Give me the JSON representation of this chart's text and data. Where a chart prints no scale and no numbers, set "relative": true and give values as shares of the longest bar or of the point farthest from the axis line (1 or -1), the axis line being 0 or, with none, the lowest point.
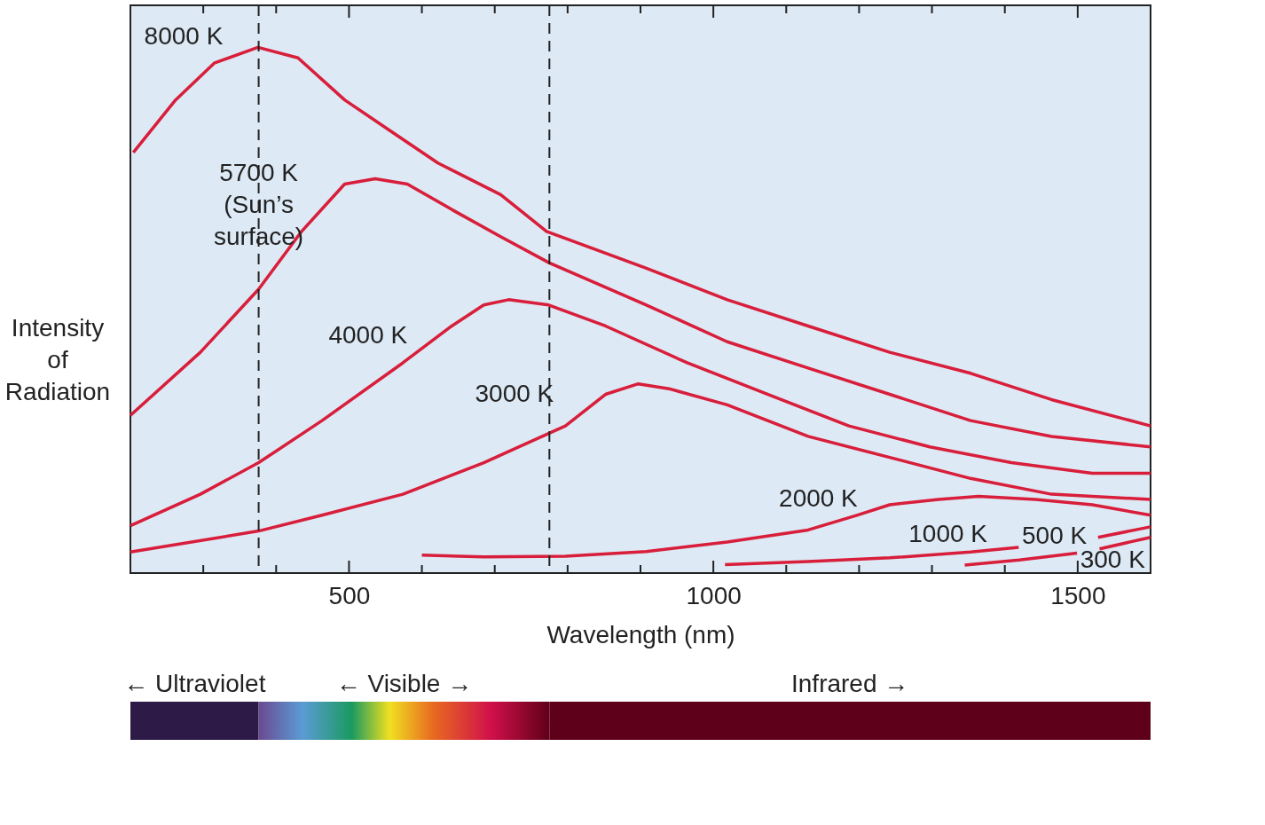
{
  "chart_data": {
    "type": "line",
    "relative": true,
    "xlabel": "Wavelength (nm)",
    "ylabel": "Intensity of Radiation",
    "xlim": [
      200,
      1600
    ],
    "xticks": [
      {
        "value": 300,
        "label": null
      },
      {
        "value": 400,
        "label": null
      },
      500,
      {
        "value": 600,
        "label": null
      },
      {
        "value": 700,
        "label": null
      },
      {
        "value": 800,
        "label": null
      },
      {
        "value": 900,
        "label": null
      },
      1000,
      {
        "value": 1100,
        "label": null
      },
      {
        "value": 1200,
        "label": null
      },
      {
        "value": 1300,
        "label": null
      },
      {
        "value": 1400,
        "label": null
      },
      1500
    ],
    "grid": false,
    "marker": "none",
    "line_style": "solid",
    "series": [
      {
        "name": "8000 K",
        "color": "#d81e3a",
        "x": [
          204,
          262,
          315,
          375,
          430,
          494,
          558,
          622,
          708,
          771,
          908,
          1019,
          1130,
          1242,
          1353,
          1464,
          1600
        ],
        "values": [
          0.8,
          0.9,
          0.97,
          1.0,
          0.98,
          0.9,
          0.84,
          0.78,
          0.72,
          0.65,
          0.58,
          0.52,
          0.47,
          0.42,
          0.38,
          0.33,
          0.28
        ]
      },
      {
        "name": "5700 K\n(Sun’s\nsurface)",
        "color": "#d81e3a",
        "x": [
          200,
          296,
          376,
          435,
          494,
          536,
          580,
          643,
          708,
          775,
          908,
          1019,
          1130,
          1242,
          1353,
          1464,
          1600
        ],
        "values": [
          0.3,
          0.42,
          0.54,
          0.65,
          0.74,
          0.75,
          0.74,
          0.69,
          0.64,
          0.59,
          0.51,
          0.44,
          0.39,
          0.34,
          0.29,
          0.26,
          0.24
        ]
      },
      {
        "name": "4000 K",
        "color": "#d81e3a",
        "x": [
          200,
          296,
          376,
          463,
          574,
          641,
          685,
          719,
          774,
          852,
          964,
          1075,
          1186,
          1297,
          1409,
          1520,
          1600
        ],
        "values": [
          0.09,
          0.15,
          0.21,
          0.29,
          0.4,
          0.47,
          0.51,
          0.52,
          0.51,
          0.47,
          0.4,
          0.34,
          0.28,
          0.24,
          0.21,
          0.19,
          0.19
        ]
      },
      {
        "name": "3000 K",
        "color": "#d81e3a",
        "x": [
          200,
          376,
          463,
          574,
          685,
          797,
          852,
          897,
          941,
          1019,
          1130,
          1242,
          1353,
          1464,
          1600
        ],
        "values": [
          0.04,
          0.08,
          0.11,
          0.15,
          0.21,
          0.28,
          0.34,
          0.36,
          0.35,
          0.32,
          0.26,
          0.22,
          0.18,
          0.15,
          0.14
        ]
      },
      {
        "name": "2000 K",
        "color": "#d81e3a",
        "x": [
          600,
          685,
          797,
          908,
          1019,
          1130,
          1197,
          1242,
          1309,
          1364,
          1442,
          1520,
          1600
        ],
        "values": [
          0.034,
          0.031,
          0.032,
          0.041,
          0.059,
          0.082,
          0.11,
          0.13,
          0.14,
          0.146,
          0.14,
          0.13,
          0.11
        ]
      },
      {
        "name": "1000 K",
        "color": "#d81e3a",
        "x": [
          1016,
          1130,
          1242,
          1353,
          1419,
          1464,
          1528,
          1600
        ],
        "values": [
          0.016,
          0.022,
          0.029,
          0.04,
          0.049,
          null,
          0.068,
          0.088
        ]
      },
      {
        "name": "500 K",
        "color": "#d81e3a",
        "x": [
          1345,
          1420,
          1499,
          1510,
          1530,
          1600
        ],
        "values": [
          0.015,
          0.025,
          0.038,
          null,
          0.046,
          0.068
        ]
      }
    ],
    "ref_lines": [
      {
        "axis": "x",
        "value": 376,
        "color": "#222222",
        "line_style": "dashed"
      },
      {
        "axis": "x",
        "value": 775,
        "color": "#222222",
        "line_style": "dashed"
      }
    ],
    "annotations": [
      "300 K",
      "← Ultraviolet",
      "← Visible →",
      "Infrared →"
    ]
  }
}
